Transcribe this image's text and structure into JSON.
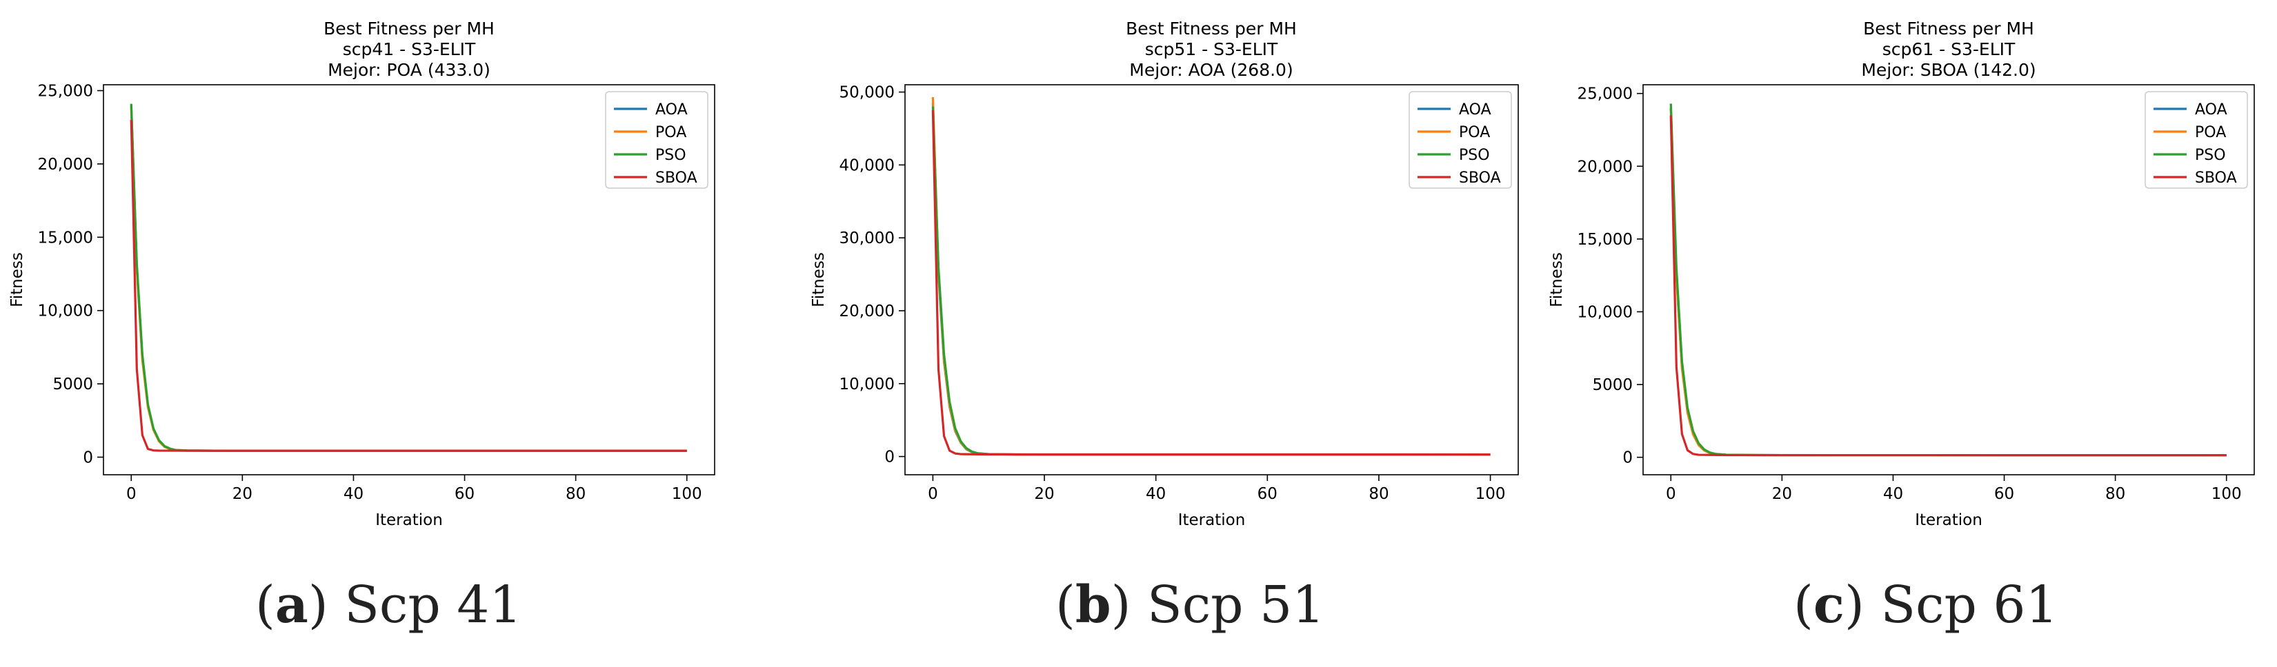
{
  "chart_data": [
    {
      "type": "line",
      "title": "Best Fitness per MH",
      "subtitle": "scp41 - S3-ELIT",
      "subtitle2": "Mejor: POA (433.0)",
      "xlabel": "Iteration",
      "ylabel": "Fitness",
      "xlim": [
        -5,
        105
      ],
      "ylim": [
        -1200,
        25400
      ],
      "xticks": [
        0,
        20,
        40,
        60,
        80,
        100
      ],
      "yticks": [
        0,
        5000,
        10000,
        15000,
        20000,
        25000
      ],
      "ytick_labels": [
        "0",
        "5000",
        "10,000",
        "15,000",
        "20,000",
        "25,000"
      ],
      "legend_position": "top-right",
      "grid": false,
      "series": [
        {
          "name": "AOA",
          "color": "#1f77b4",
          "points": [
            [
              0,
              24000
            ],
            [
              1,
              13000
            ],
            [
              2,
              6800
            ],
            [
              3,
              3500
            ],
            [
              4,
              1900
            ],
            [
              5,
              1100
            ],
            [
              6,
              720
            ],
            [
              7,
              560
            ],
            [
              8,
              480
            ],
            [
              10,
              450
            ],
            [
              15,
              440
            ],
            [
              20,
              436
            ],
            [
              100,
              435
            ]
          ]
        },
        {
          "name": "POA",
          "color": "#ff7f0e",
          "points": [
            [
              0,
              23800
            ],
            [
              1,
              12800
            ],
            [
              2,
              6600
            ],
            [
              3,
              3400
            ],
            [
              4,
              1850
            ],
            [
              5,
              1080
            ],
            [
              6,
              700
            ],
            [
              7,
              550
            ],
            [
              8,
              470
            ],
            [
              10,
              445
            ],
            [
              15,
              436
            ],
            [
              20,
              434
            ],
            [
              100,
              433
            ]
          ]
        },
        {
          "name": "PSO",
          "color": "#2ca02c",
          "points": [
            [
              0,
              24100
            ],
            [
              1,
              13200
            ],
            [
              2,
              7000
            ],
            [
              3,
              3600
            ],
            [
              4,
              1950
            ],
            [
              5,
              1150
            ],
            [
              6,
              750
            ],
            [
              7,
              580
            ],
            [
              8,
              490
            ],
            [
              10,
              455
            ],
            [
              15,
              442
            ],
            [
              20,
              437
            ],
            [
              100,
              436
            ]
          ]
        },
        {
          "name": "SBOA",
          "color": "#d62728",
          "points": [
            [
              0,
              23000
            ],
            [
              1,
              6000
            ],
            [
              2,
              1500
            ],
            [
              3,
              560
            ],
            [
              4,
              460
            ],
            [
              5,
              445
            ],
            [
              10,
              440
            ],
            [
              100,
              438
            ]
          ]
        }
      ]
    },
    {
      "type": "line",
      "title": "Best Fitness per MH",
      "subtitle": "scp51 - S3-ELIT",
      "subtitle2": "Mejor: AOA (268.0)",
      "xlabel": "Iteration",
      "ylabel": "Fitness",
      "xlim": [
        -5,
        105
      ],
      "ylim": [
        -2500,
        51000
      ],
      "xticks": [
        0,
        20,
        40,
        60,
        80,
        100
      ],
      "yticks": [
        0,
        10000,
        20000,
        30000,
        40000,
        50000
      ],
      "ytick_labels": [
        "0",
        "10,000",
        "20,000",
        "30,000",
        "40,000",
        "50,000"
      ],
      "legend_position": "top-right",
      "grid": false,
      "series": [
        {
          "name": "AOA",
          "color": "#1f77b4",
          "points": [
            [
              0,
              48500
            ],
            [
              1,
              25000
            ],
            [
              2,
              13000
            ],
            [
              3,
              6800
            ],
            [
              4,
              3500
            ],
            [
              5,
              1900
            ],
            [
              6,
              1000
            ],
            [
              7,
              600
            ],
            [
              8,
              420
            ],
            [
              10,
              320
            ],
            [
              15,
              280
            ],
            [
              20,
              272
            ],
            [
              100,
              268
            ]
          ]
        },
        {
          "name": "POA",
          "color": "#ff7f0e",
          "points": [
            [
              0,
              49300
            ],
            [
              1,
              25500
            ],
            [
              2,
              13200
            ],
            [
              3,
              6900
            ],
            [
              4,
              3600
            ],
            [
              5,
              1950
            ],
            [
              6,
              1050
            ],
            [
              7,
              620
            ],
            [
              8,
              430
            ],
            [
              10,
              330
            ],
            [
              15,
              285
            ],
            [
              20,
              275
            ],
            [
              100,
              270
            ]
          ]
        },
        {
          "name": "PSO",
          "color": "#2ca02c",
          "points": [
            [
              0,
              48000
            ],
            [
              1,
              26000
            ],
            [
              2,
              14000
            ],
            [
              3,
              7500
            ],
            [
              4,
              3900
            ],
            [
              5,
              2100
            ],
            [
              6,
              1150
            ],
            [
              7,
              680
            ],
            [
              8,
              460
            ],
            [
              10,
              340
            ],
            [
              15,
              290
            ],
            [
              20,
              278
            ],
            [
              100,
              272
            ]
          ]
        },
        {
          "name": "SBOA",
          "color": "#d62728",
          "points": [
            [
              0,
              47500
            ],
            [
              1,
              12000
            ],
            [
              2,
              2800
            ],
            [
              3,
              800
            ],
            [
              4,
              420
            ],
            [
              5,
              330
            ],
            [
              10,
              290
            ],
            [
              100,
              285
            ]
          ]
        }
      ]
    },
    {
      "type": "line",
      "title": "Best Fitness per MH",
      "subtitle": "scp61 - S3-ELIT",
      "subtitle2": "Mejor: SBOA (142.0)",
      "xlabel": "Iteration",
      "ylabel": "Fitness",
      "xlim": [
        -5,
        105
      ],
      "ylim": [
        -1200,
        25600
      ],
      "xticks": [
        0,
        20,
        40,
        60,
        80,
        100
      ],
      "yticks": [
        0,
        5000,
        10000,
        15000,
        20000,
        25000
      ],
      "ytick_labels": [
        "0",
        "5000",
        "10,000",
        "15,000",
        "20,000",
        "25,000"
      ],
      "legend_position": "top-right",
      "grid": false,
      "series": [
        {
          "name": "AOA",
          "color": "#1f77b4",
          "points": [
            [
              0,
              24000
            ],
            [
              1,
              12500
            ],
            [
              2,
              6200
            ],
            [
              3,
              3100
            ],
            [
              4,
              1600
            ],
            [
              5,
              850
            ],
            [
              6,
              480
            ],
            [
              7,
              300
            ],
            [
              8,
              220
            ],
            [
              10,
              170
            ],
            [
              15,
              150
            ],
            [
              20,
              146
            ],
            [
              100,
              144
            ]
          ]
        },
        {
          "name": "POA",
          "color": "#ff7f0e",
          "points": [
            [
              0,
              23900
            ],
            [
              1,
              12400
            ],
            [
              2,
              6100
            ],
            [
              3,
              3050
            ],
            [
              4,
              1580
            ],
            [
              5,
              830
            ],
            [
              6,
              470
            ],
            [
              7,
              295
            ],
            [
              8,
              215
            ],
            [
              10,
              168
            ],
            [
              15,
              149
            ],
            [
              20,
              145
            ],
            [
              100,
              143
            ]
          ]
        },
        {
          "name": "PSO",
          "color": "#2ca02c",
          "points": [
            [
              0,
              24300
            ],
            [
              1,
              13000
            ],
            [
              2,
              6600
            ],
            [
              3,
              3400
            ],
            [
              4,
              1800
            ],
            [
              5,
              960
            ],
            [
              6,
              540
            ],
            [
              7,
              330
            ],
            [
              8,
              235
            ],
            [
              10,
              175
            ],
            [
              15,
              152
            ],
            [
              20,
              147
            ],
            [
              100,
              145
            ]
          ]
        },
        {
          "name": "SBOA",
          "color": "#d62728",
          "points": [
            [
              0,
              23500
            ],
            [
              1,
              6200
            ],
            [
              2,
              1600
            ],
            [
              3,
              480
            ],
            [
              4,
              230
            ],
            [
              5,
              170
            ],
            [
              10,
              148
            ],
            [
              100,
              142
            ]
          ]
        }
      ]
    }
  ],
  "captions": [
    {
      "letter": "a",
      "text": "Scp 41"
    },
    {
      "letter": "b",
      "text": "Scp 51"
    },
    {
      "letter": "c",
      "text": "Scp 61"
    }
  ]
}
